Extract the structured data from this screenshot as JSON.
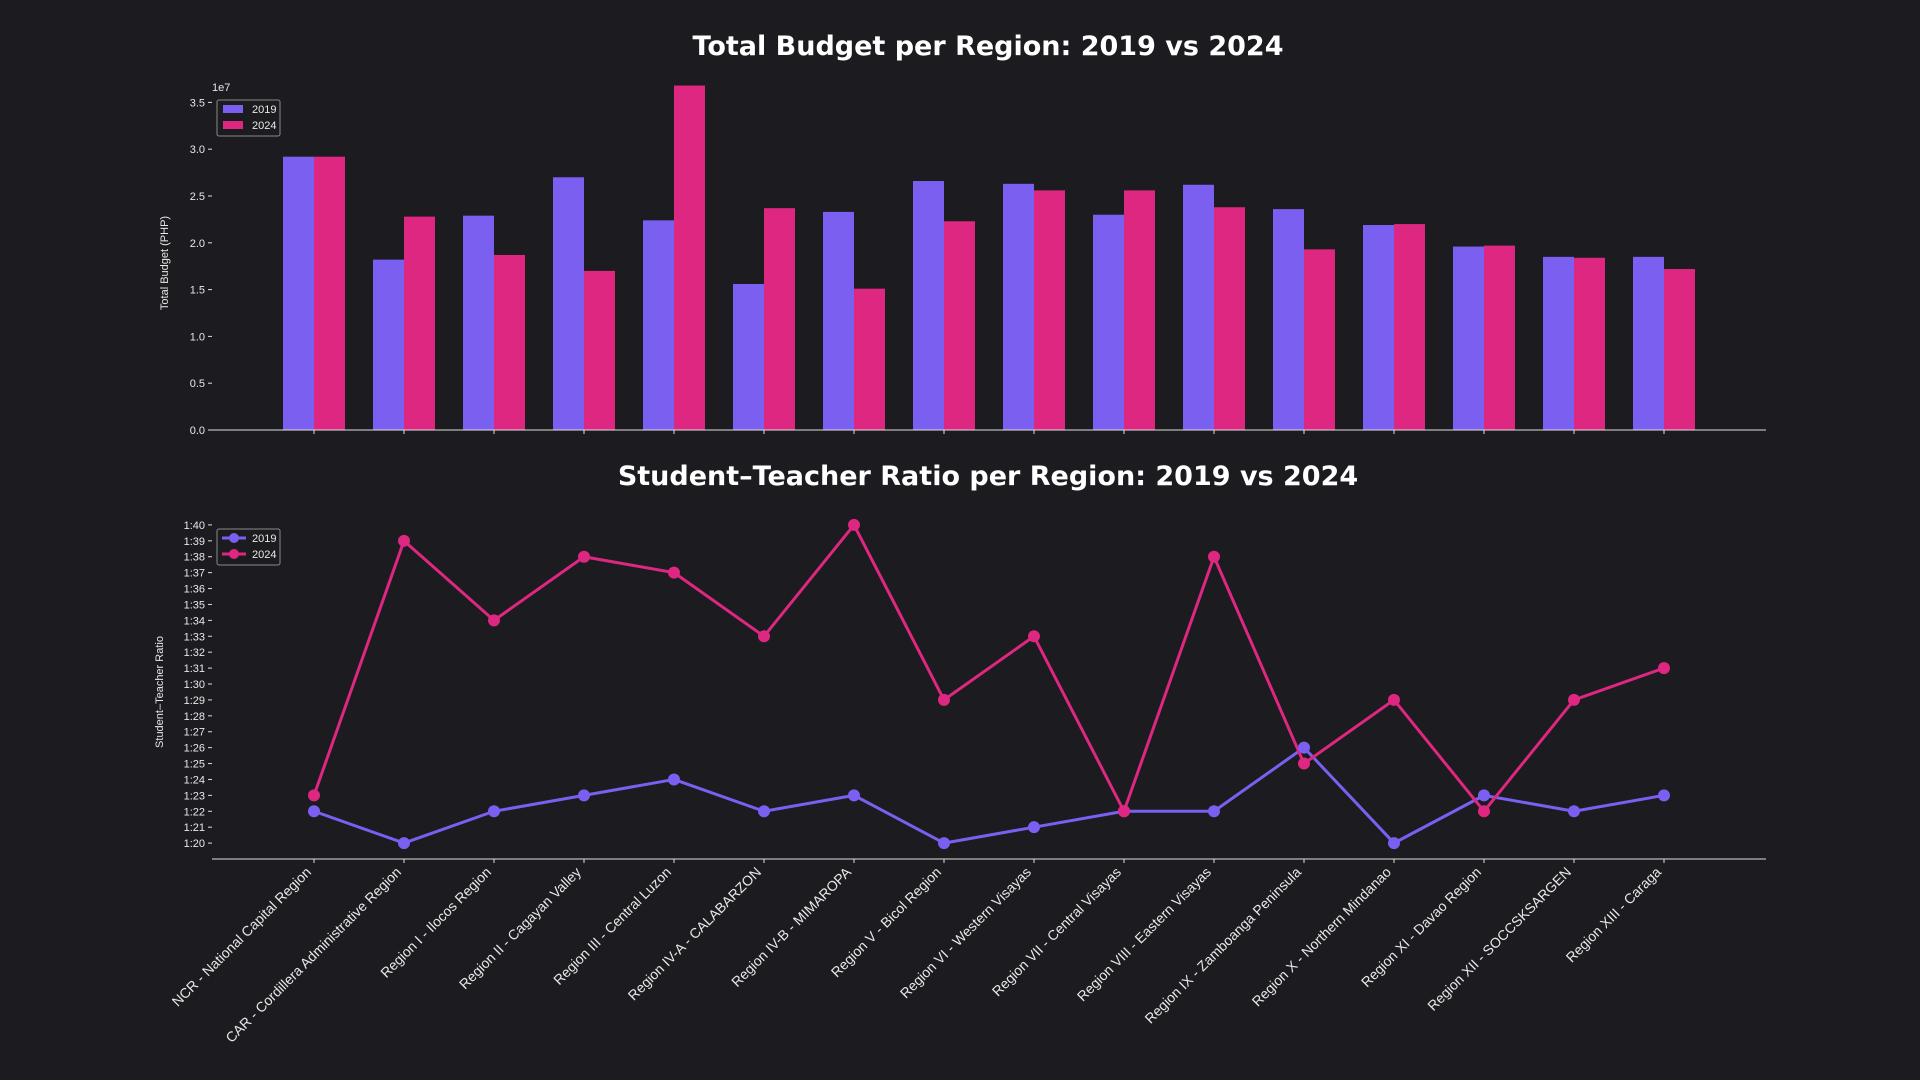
{
  "colors": {
    "background": "#1c1b1f",
    "series_2019": "#7a5ff0",
    "series_2024": "#dd2780",
    "text": "#e8e8e8"
  },
  "chart_data": [
    {
      "type": "bar",
      "title": "Total Budget per Region: 2019 vs 2024",
      "ylabel": "Total Budget (PHP)",
      "xlabel": "",
      "offset_text": "1e7",
      "ylim": [
        0,
        3.75
      ],
      "yticks": [
        0.0,
        0.5,
        1.0,
        1.5,
        2.0,
        2.5,
        3.0,
        3.5
      ],
      "ytick_labels": [
        "0.0",
        "0.5",
        "1.0",
        "1.5",
        "2.0",
        "2.5",
        "3.0",
        "3.5"
      ],
      "legend": {
        "placement": "top-left",
        "entries": [
          "2019",
          "2024"
        ]
      },
      "categories": [
        "NCR - National Capital Region",
        "CAR - Cordillera Administrative Region",
        "Region I - Ilocos Region",
        "Region II - Cagayan Valley",
        "Region III - Central Luzon",
        "Region IV-A - CALABARZON",
        "Region IV-B - MIMAROPA",
        "Region V - Bicol Region",
        "Region VI - Western Visayas",
        "Region VII - Central Visayas",
        "Region VIII - Eastern Visayas",
        "Region IX - Zamboanga Peninsula",
        "Region X - Northern Mindanao",
        "Region XI - Davao Region",
        "Region XII - SOCCSKSARGEN",
        "Region XIII - Caraga"
      ],
      "series": [
        {
          "name": "2019",
          "values": [
            2.92,
            1.82,
            2.29,
            2.7,
            2.24,
            1.56,
            2.33,
            2.66,
            2.63,
            2.3,
            2.62,
            2.36,
            2.19,
            1.96,
            1.85,
            1.85
          ]
        },
        {
          "name": "2024",
          "values": [
            2.92,
            2.28,
            1.87,
            1.7,
            3.68,
            2.37,
            1.51,
            2.23,
            2.56,
            2.56,
            2.38,
            1.93,
            2.2,
            1.97,
            1.84,
            1.72
          ]
        }
      ]
    },
    {
      "type": "line",
      "title": "Student–Teacher Ratio per Region: 2019 vs 2024",
      "ylabel": "Student–Teacher Ratio",
      "xlabel": "",
      "ylim": [
        19,
        41
      ],
      "yticks": [
        20,
        21,
        22,
        23,
        24,
        25,
        26,
        27,
        28,
        29,
        30,
        31,
        32,
        33,
        34,
        35,
        36,
        37,
        38,
        39,
        40
      ],
      "ytick_labels": [
        "1:20",
        "1:21",
        "1:22",
        "1:23",
        "1:24",
        "1:25",
        "1:26",
        "1:27",
        "1:28",
        "1:29",
        "1:30",
        "1:31",
        "1:32",
        "1:33",
        "1:34",
        "1:35",
        "1:36",
        "1:37",
        "1:38",
        "1:39",
        "1:40"
      ],
      "legend": {
        "placement": "top-left",
        "entries": [
          "2019",
          "2024"
        ]
      },
      "series": [
        {
          "name": "2019",
          "values": [
            22,
            20,
            22,
            23,
            24,
            22,
            23,
            20,
            21,
            22,
            22,
            26,
            20,
            23,
            22,
            23
          ]
        },
        {
          "name": "2024",
          "values": [
            23,
            39,
            34,
            38,
            37,
            33,
            40,
            29,
            33,
            22,
            38,
            25,
            29,
            22,
            29,
            31
          ]
        }
      ]
    }
  ]
}
